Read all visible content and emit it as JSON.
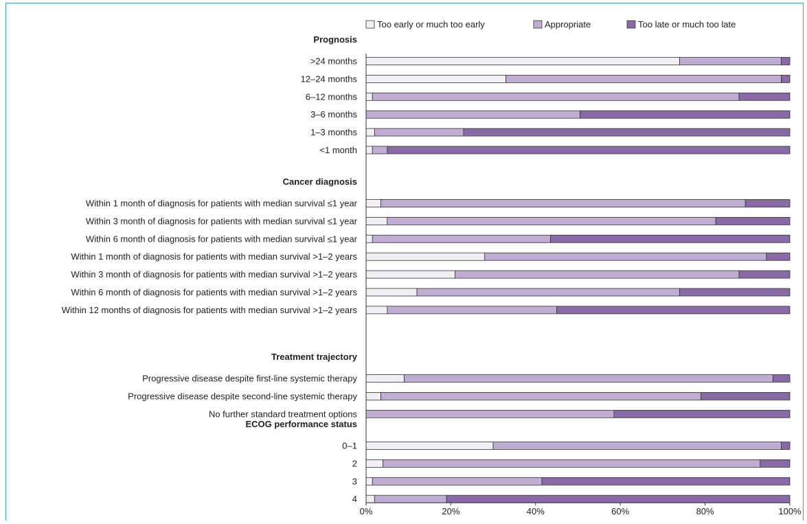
{
  "chart_data": {
    "type": "bar",
    "stacked": true,
    "orientation": "horizontal",
    "legend_position": "top",
    "colors": {
      "Too early or much too early": "#f1eff4",
      "Appropriate": "#bfadd3",
      "Too late or much too late": "#8a6aa6",
      "frame": "#3aa6a1"
    },
    "series": [
      {
        "name": "Too early or much too early"
      },
      {
        "name": "Appropriate"
      },
      {
        "name": "Too late or much too late"
      }
    ],
    "groups": [
      {
        "title": "Prognosis",
        "rows": [
          {
            "label": ">24 months",
            "values": [
              74,
              24,
              2
            ]
          },
          {
            "label": "12–24 months",
            "values": [
              33,
              65,
              2
            ]
          },
          {
            "label": "6–12 months",
            "values": [
              1.5,
              86.5,
              12
            ]
          },
          {
            "label": "3–6 months",
            "values": [
              0,
              50.5,
              49.5
            ]
          },
          {
            "label": "1–3 months",
            "values": [
              2,
              21,
              77
            ]
          },
          {
            "label": "<1 month",
            "values": [
              1.5,
              3.5,
              95
            ]
          }
        ]
      },
      {
        "title": "Cancer diagnosis",
        "rows": [
          {
            "label": "Within 1 month of diagnosis for patients with median survival ≤1 year",
            "values": [
              3.5,
              86,
              10.5
            ]
          },
          {
            "label": "Within 3 month of diagnosis for patients with median survival ≤1 year",
            "values": [
              5,
              77.5,
              17.5
            ]
          },
          {
            "label": "Within 6 month of diagnosis for patients with median survival ≤1 year",
            "values": [
              1.5,
              42,
              56.5
            ]
          },
          {
            "label": "Within 1 month of diagnosis for patients with median survival >1–2 years",
            "values": [
              28,
              66.5,
              5.5
            ]
          },
          {
            "label": "Within 3 month of diagnosis for patients with median survival >1–2 years",
            "values": [
              21,
              67,
              12
            ]
          },
          {
            "label": "Within 6 month of diagnosis for patients with median survival >1–2 years",
            "values": [
              12,
              62,
              26
            ]
          },
          {
            "label": "Within 12 months of diagnosis for patients with median survival >1–2 years",
            "values": [
              5,
              40,
              55
            ]
          }
        ]
      },
      {
        "title": "Treatment trajectory",
        "rows": [
          {
            "label": "Progressive disease despite first-line systemic therapy",
            "values": [
              9,
              87,
              4
            ]
          },
          {
            "label": "Progressive disease despite second-line systemic therapy",
            "values": [
              3.5,
              75.5,
              21
            ]
          },
          {
            "label": "No further standard treatment options",
            "values": [
              0,
              58.5,
              41.5
            ]
          }
        ]
      },
      {
        "title": "ECOG performance status",
        "rows": [
          {
            "label": "0–1",
            "values": [
              30,
              68,
              2
            ]
          },
          {
            "label": "2",
            "values": [
              4,
              89,
              7
            ]
          },
          {
            "label": "3",
            "values": [
              1.5,
              40,
              58.5
            ]
          },
          {
            "label": "4",
            "values": [
              2,
              17,
              81
            ]
          }
        ]
      }
    ],
    "x_ticks": [
      "0%",
      "20%",
      "40%",
      "60%",
      "80%",
      "100%"
    ],
    "xlim": [
      0,
      100
    ]
  }
}
